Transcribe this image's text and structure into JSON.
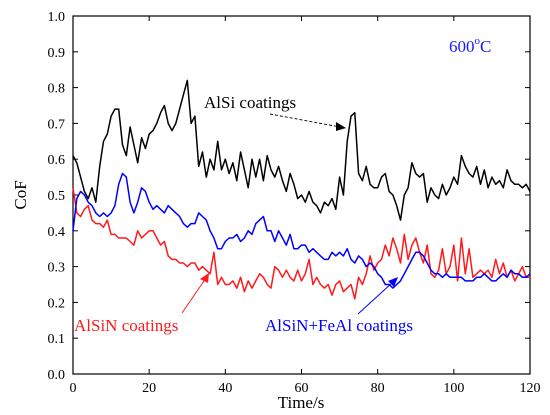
{
  "chart_data": {
    "type": "line",
    "xlabel": "Time/s",
    "ylabel": "CoF",
    "xlim": [
      0,
      120
    ],
    "ylim": [
      0.0,
      1.0
    ],
    "xticks": [
      0,
      20,
      40,
      60,
      80,
      100,
      120
    ],
    "yticks": [
      0.0,
      0.1,
      0.2,
      0.3,
      0.4,
      0.5,
      0.6,
      0.7,
      0.8,
      0.9,
      1.0
    ],
    "xtick_labels": [
      "0",
      "20",
      "40",
      "60",
      "80",
      "100",
      "120"
    ],
    "ytick_labels": [
      "0.0",
      "0.1",
      "0.2",
      "0.3",
      "0.4",
      "0.5",
      "0.6",
      "0.7",
      "0.8",
      "0.9",
      "1.0"
    ],
    "grid": false,
    "temperature_label": {
      "base": "600",
      "sup": "o",
      "suffix": "C",
      "color": "#1a1aff"
    },
    "series": [
      {
        "name": "AlSi coatings",
        "color": "#000000",
        "x": [
          0,
          1,
          2,
          3,
          4,
          5,
          6,
          7,
          8,
          9,
          10,
          11,
          12,
          13,
          14,
          15,
          16,
          17,
          18,
          19,
          20,
          21,
          22,
          23,
          24,
          25,
          26,
          27,
          28,
          29,
          30,
          31,
          32,
          33,
          34,
          35,
          36,
          37,
          38,
          39,
          40,
          41,
          42,
          43,
          44,
          45,
          46,
          47,
          48,
          49,
          50,
          51,
          52,
          53,
          54,
          55,
          56,
          57,
          58,
          59,
          60,
          61,
          62,
          63,
          64,
          65,
          66,
          67,
          68,
          69,
          70,
          71,
          72,
          73,
          74,
          75,
          76,
          77,
          78,
          79,
          80,
          81,
          82,
          83,
          84,
          85,
          86,
          87,
          88,
          89,
          90,
          91,
          92,
          93,
          94,
          95,
          96,
          97,
          98,
          99,
          100,
          101,
          102,
          103,
          104,
          105,
          106,
          107,
          108,
          109,
          110,
          111,
          112,
          113,
          114,
          115,
          116,
          117,
          118,
          119,
          120
        ],
        "y": [
          0.61,
          0.59,
          0.55,
          0.51,
          0.49,
          0.52,
          0.48,
          0.58,
          0.65,
          0.67,
          0.72,
          0.74,
          0.74,
          0.64,
          0.61,
          0.69,
          0.64,
          0.59,
          0.66,
          0.63,
          0.67,
          0.68,
          0.7,
          0.73,
          0.75,
          0.7,
          0.68,
          0.7,
          0.74,
          0.78,
          0.82,
          0.7,
          0.72,
          0.58,
          0.62,
          0.55,
          0.6,
          0.57,
          0.65,
          0.57,
          0.6,
          0.56,
          0.59,
          0.54,
          0.62,
          0.57,
          0.52,
          0.6,
          0.55,
          0.6,
          0.54,
          0.61,
          0.57,
          0.55,
          0.58,
          0.54,
          0.51,
          0.56,
          0.53,
          0.49,
          0.5,
          0.48,
          0.51,
          0.48,
          0.47,
          0.45,
          0.48,
          0.47,
          0.49,
          0.46,
          0.55,
          0.5,
          0.65,
          0.72,
          0.73,
          0.56,
          0.54,
          0.58,
          0.53,
          0.52,
          0.52,
          0.55,
          0.56,
          0.51,
          0.5,
          0.47,
          0.43,
          0.5,
          0.52,
          0.59,
          0.56,
          0.55,
          0.56,
          0.48,
          0.52,
          0.5,
          0.49,
          0.53,
          0.5,
          0.52,
          0.55,
          0.53,
          0.61,
          0.58,
          0.56,
          0.55,
          0.58,
          0.53,
          0.57,
          0.52,
          0.55,
          0.53,
          0.54,
          0.52,
          0.57,
          0.54,
          0.53,
          0.53,
          0.52,
          0.53,
          0.51
        ]
      },
      {
        "name": "AlSiN coatings",
        "color": "#ff1a1a",
        "x": [
          0,
          1,
          2,
          3,
          4,
          5,
          6,
          7,
          8,
          9,
          10,
          11,
          12,
          13,
          14,
          15,
          16,
          17,
          18,
          19,
          20,
          21,
          22,
          23,
          24,
          25,
          26,
          27,
          28,
          29,
          30,
          31,
          32,
          33,
          34,
          35,
          36,
          37,
          38,
          39,
          40,
          41,
          42,
          43,
          44,
          45,
          46,
          47,
          48,
          49,
          50,
          51,
          52,
          53,
          54,
          55,
          56,
          57,
          58,
          59,
          60,
          61,
          62,
          63,
          64,
          65,
          66,
          67,
          68,
          69,
          70,
          71,
          72,
          73,
          74,
          75,
          76,
          77,
          78,
          79,
          80,
          81,
          82,
          83,
          84,
          85,
          86,
          87,
          88,
          89,
          90,
          91,
          92,
          93,
          94,
          95,
          96,
          97,
          98,
          99,
          100,
          101,
          102,
          103,
          104,
          105,
          106,
          107,
          108,
          109,
          110,
          111,
          112,
          113,
          114,
          115,
          116,
          117,
          118,
          119,
          120
        ],
        "y": [
          0.52,
          0.45,
          0.44,
          0.46,
          0.47,
          0.43,
          0.42,
          0.42,
          0.41,
          0.43,
          0.39,
          0.39,
          0.38,
          0.38,
          0.38,
          0.37,
          0.36,
          0.4,
          0.38,
          0.39,
          0.4,
          0.4,
          0.38,
          0.36,
          0.37,
          0.33,
          0.32,
          0.32,
          0.31,
          0.31,
          0.3,
          0.31,
          0.31,
          0.29,
          0.3,
          0.29,
          0.28,
          0.34,
          0.25,
          0.27,
          0.25,
          0.25,
          0.26,
          0.24,
          0.27,
          0.23,
          0.26,
          0.24,
          0.26,
          0.28,
          0.27,
          0.25,
          0.24,
          0.3,
          0.29,
          0.27,
          0.29,
          0.27,
          0.26,
          0.29,
          0.26,
          0.28,
          0.32,
          0.25,
          0.27,
          0.25,
          0.24,
          0.25,
          0.22,
          0.25,
          0.26,
          0.23,
          0.24,
          0.25,
          0.21,
          0.27,
          0.25,
          0.28,
          0.33,
          0.29,
          0.31,
          0.32,
          0.36,
          0.33,
          0.38,
          0.35,
          0.31,
          0.39,
          0.32,
          0.36,
          0.38,
          0.34,
          0.31,
          0.36,
          0.28,
          0.27,
          0.29,
          0.35,
          0.28,
          0.3,
          0.36,
          0.26,
          0.38,
          0.28,
          0.35,
          0.27,
          0.28,
          0.29,
          0.28,
          0.29,
          0.27,
          0.32,
          0.28,
          0.31,
          0.27,
          0.29,
          0.26,
          0.28,
          0.3,
          0.27,
          0.27
        ]
      },
      {
        "name": "AlSiN+FeAl coatings",
        "color": "#0000ff",
        "x": [
          0,
          1,
          2,
          3,
          4,
          5,
          6,
          7,
          8,
          9,
          10,
          11,
          12,
          13,
          14,
          15,
          16,
          17,
          18,
          19,
          20,
          21,
          22,
          23,
          24,
          25,
          26,
          27,
          28,
          29,
          30,
          31,
          32,
          33,
          34,
          35,
          36,
          37,
          38,
          39,
          40,
          41,
          42,
          43,
          44,
          45,
          46,
          47,
          48,
          49,
          50,
          51,
          52,
          53,
          54,
          55,
          56,
          57,
          58,
          59,
          60,
          61,
          62,
          63,
          64,
          65,
          66,
          67,
          68,
          69,
          70,
          71,
          72,
          73,
          74,
          75,
          76,
          77,
          78,
          79,
          80,
          81,
          82,
          83,
          84,
          85,
          86,
          87,
          88,
          89,
          90,
          91,
          92,
          93,
          94,
          95,
          96,
          97,
          98,
          99,
          100,
          101,
          102,
          103,
          104,
          105,
          106,
          107,
          108,
          109,
          110,
          111,
          112,
          113,
          114,
          115,
          116,
          117,
          118,
          119,
          120
        ],
        "y": [
          0.4,
          0.49,
          0.51,
          0.5,
          0.48,
          0.47,
          0.45,
          0.44,
          0.45,
          0.44,
          0.45,
          0.47,
          0.53,
          0.56,
          0.55,
          0.48,
          0.45,
          0.48,
          0.52,
          0.51,
          0.48,
          0.46,
          0.47,
          0.46,
          0.45,
          0.47,
          0.46,
          0.45,
          0.44,
          0.42,
          0.41,
          0.42,
          0.42,
          0.45,
          0.44,
          0.43,
          0.4,
          0.38,
          0.35,
          0.35,
          0.37,
          0.38,
          0.38,
          0.39,
          0.37,
          0.38,
          0.4,
          0.39,
          0.42,
          0.43,
          0.44,
          0.4,
          0.4,
          0.37,
          0.4,
          0.38,
          0.36,
          0.39,
          0.35,
          0.35,
          0.36,
          0.36,
          0.34,
          0.35,
          0.34,
          0.33,
          0.32,
          0.32,
          0.34,
          0.33,
          0.34,
          0.33,
          0.35,
          0.32,
          0.31,
          0.33,
          0.32,
          0.3,
          0.31,
          0.3,
          0.28,
          0.27,
          0.25,
          0.25,
          0.24,
          0.25,
          0.26,
          0.28,
          0.3,
          0.32,
          0.34,
          0.34,
          0.33,
          0.31,
          0.29,
          0.28,
          0.28,
          0.27,
          0.28,
          0.27,
          0.27,
          0.27,
          0.27,
          0.26,
          0.26,
          0.26,
          0.27,
          0.27,
          0.28,
          0.27,
          0.26,
          0.26,
          0.27,
          0.28,
          0.27,
          0.29,
          0.28,
          0.28,
          0.27,
          0.27,
          0.28
        ]
      }
    ],
    "annotations": [
      {
        "text": "AlSi coatings",
        "color": "#000000",
        "series": "AlSi coatings"
      },
      {
        "text": "AlSiN coatings",
        "color": "#ff1a1a",
        "series": "AlSiN coatings"
      },
      {
        "text": "AlSiN+FeAl coatings",
        "color": "#0000ff",
        "series": "AlSiN+FeAl coatings"
      }
    ]
  }
}
